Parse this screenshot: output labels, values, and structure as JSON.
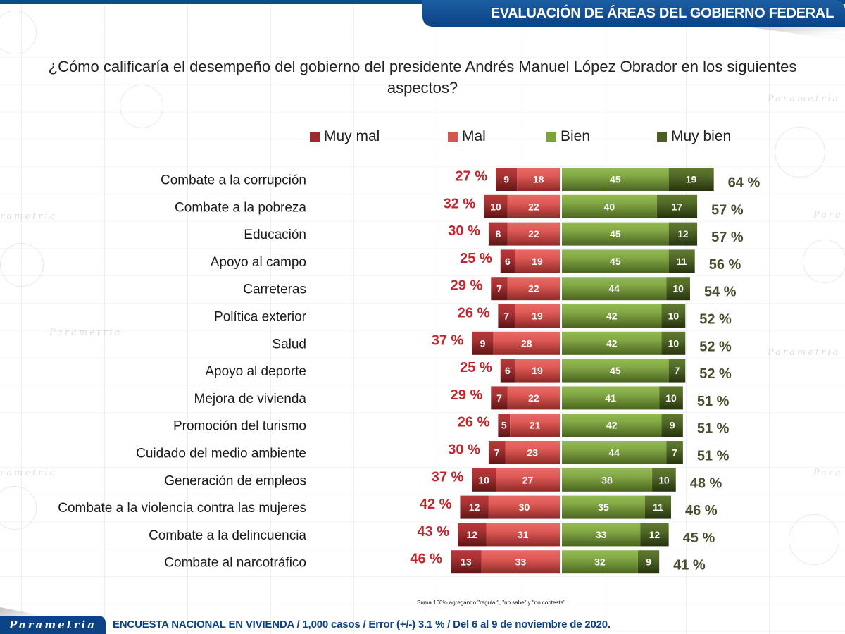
{
  "header": {
    "title": "EVALUACIÓN DE ÁREAS DEL GOBIERNO FEDERAL"
  },
  "question": "¿Cómo calificaría el desempeño del gobierno del presidente Andrés Manuel López Obrador en los siguientes aspectos?",
  "legend": [
    {
      "label": "Muy mal",
      "color": "#9e2a2b"
    },
    {
      "label": "Mal",
      "color": "#d9534f"
    },
    {
      "label": "Bien",
      "color": "#7aa33a"
    },
    {
      "label": "Muy bien",
      "color": "#4a5e23"
    }
  ],
  "chart_data": {
    "type": "bar",
    "subtype": "diverging-stacked-horizontal",
    "title": "¿Cómo calificaría el desempeño del gobierno del presidente Andrés Manuel López Obrador en los siguientes aspectos?",
    "xlabel": "",
    "ylabel": "",
    "grid": false,
    "legend_position": "top",
    "categories": [
      "Combate a la corrupción",
      "Combate a la pobreza",
      "Educación",
      "Apoyo al campo",
      "Carreteras",
      "Política exterior",
      "Salud",
      "Apoyo al deporte",
      "Mejora de vivienda",
      "Promoción del turismo",
      "Cuidado del medio ambiente",
      "Generación de empleos",
      "Combate a la violencia contra las mujeres",
      "Combate a la delincuencia",
      "Combate al narcotráfico"
    ],
    "series": [
      {
        "name": "Muy mal",
        "side": "negative",
        "values": [
          9,
          10,
          8,
          6,
          7,
          7,
          9,
          6,
          7,
          5,
          7,
          10,
          12,
          12,
          13
        ]
      },
      {
        "name": "Mal",
        "side": "negative",
        "values": [
          18,
          22,
          22,
          19,
          22,
          19,
          28,
          19,
          22,
          21,
          23,
          27,
          30,
          31,
          33
        ]
      },
      {
        "name": "Bien",
        "side": "positive",
        "values": [
          45,
          40,
          45,
          45,
          44,
          42,
          42,
          45,
          41,
          42,
          44,
          38,
          35,
          33,
          32
        ]
      },
      {
        "name": "Muy bien",
        "side": "positive",
        "values": [
          19,
          17,
          12,
          11,
          10,
          10,
          10,
          7,
          10,
          9,
          7,
          10,
          11,
          12,
          9
        ]
      }
    ],
    "negative_totals": [
      "27 %",
      "32 %",
      "30 %",
      "25 %",
      "29 %",
      "26 %",
      "37 %",
      "25 %",
      "29 %",
      "26 %",
      "30 %",
      "37 %",
      "42 %",
      "43 %",
      "46 %"
    ],
    "positive_totals": [
      "64 %",
      "57 %",
      "57 %",
      "56 %",
      "54 %",
      "52 %",
      "52 %",
      "52 %",
      "51 %",
      "51 %",
      "51 %",
      "48 %",
      "46 %",
      "45 %",
      "41 %"
    ],
    "unit": "%"
  },
  "footnote": "Suma 100% agregando \"regular\", \"no sabe\" y \"no contesta\".",
  "footer": {
    "brand": "Parametria",
    "text": "ENCUESTA NACIONAL EN VIVIENDA / 1,000 casos / Error (+/-) 3.1 % / Del 6 al 9 de noviembre de 2020."
  }
}
